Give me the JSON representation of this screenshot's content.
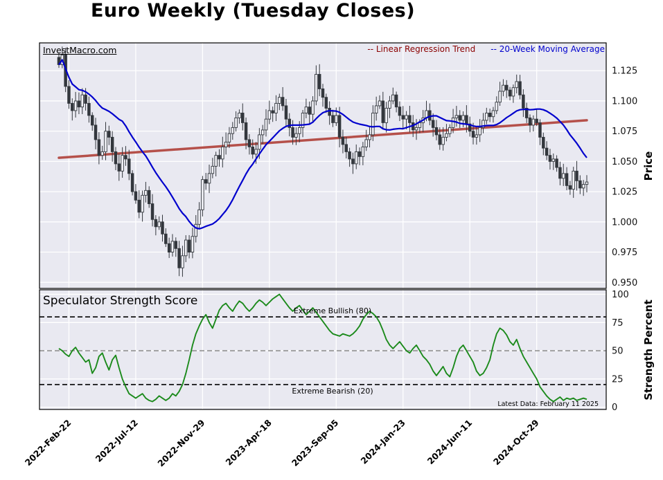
{
  "title": "Euro Weekly (Tuesday Closes)",
  "watermark": "InvestMacro.com",
  "legend": {
    "regression_label": "-- Linear Regression Trend",
    "ma_label": "-- 20-Week Moving Average"
  },
  "price_axis_label": "Price",
  "strength_axis_label": "Strength Percent",
  "subpanel_title": "Speculator Strength Score",
  "annotations": {
    "bullish": "Extreme Bullish (80)",
    "bearish": "Extreme Bearish (20)",
    "latest": "Latest Data: February 11 2025"
  },
  "colors": {
    "panel_bg": "#e9e9f1",
    "grid": "#ffffff",
    "regression_line": "#b5504a",
    "regression_text": "#8b0000",
    "ma_line": "#0000cd",
    "ma_text": "#0000cd",
    "strength_line": "#1b8a1b",
    "candle": "#33373d",
    "threshold_dark": "#000000",
    "threshold_gray": "#8a8a8a"
  },
  "chart_data": [
    {
      "type": "candlestick",
      "title": "Euro Weekly (Tuesday Closes)",
      "ylabel": "Price",
      "ylim": [
        0.945,
        1.148
      ],
      "ytick_values": [
        0.95,
        0.975,
        1.0,
        1.025,
        1.05,
        1.075,
        1.1,
        1.125
      ],
      "ytick_labels": [
        "0.950",
        "0.975",
        "1.000",
        "1.025",
        "1.050",
        "1.075",
        "1.100",
        "1.125"
      ],
      "x_tick_labels": [
        "2022-Feb-22",
        "2022-Jul-12",
        "2022-Nov-29",
        "2023-Apr-18",
        "2023-Sep-05",
        "2024-Jan-23",
        "2024-Jun-11",
        "2024-Oct-29"
      ],
      "x_tick_weeks": [
        3,
        23,
        43,
        63,
        83,
        103,
        123,
        143
      ],
      "ma_window": 20,
      "regression_trend": {
        "start": 1.053,
        "end": 1.084
      },
      "closes": [
        1.13,
        1.138,
        1.112,
        1.098,
        1.092,
        1.1,
        1.095,
        1.105,
        1.098,
        1.088,
        1.08,
        1.068,
        1.055,
        1.058,
        1.075,
        1.07,
        1.058,
        1.048,
        1.042,
        1.055,
        1.052,
        1.04,
        1.025,
        1.018,
        1.008,
        1.022,
        1.026,
        1.015,
        1.002,
        0.996,
        1.0,
        0.99,
        0.982,
        0.975,
        0.984,
        0.978,
        0.962,
        0.972,
        0.985,
        0.975,
        0.988,
        0.998,
        1.01,
        1.035,
        1.032,
        1.04,
        1.046,
        1.055,
        1.052,
        1.062,
        1.066,
        1.073,
        1.078,
        1.086,
        1.09,
        1.082,
        1.068,
        1.062,
        1.056,
        1.06,
        1.072,
        1.076,
        1.085,
        1.092,
        1.09,
        1.098,
        1.103,
        1.096,
        1.085,
        1.078,
        1.07,
        1.073,
        1.078,
        1.09,
        1.095,
        1.089,
        1.1,
        1.122,
        1.11,
        1.103,
        1.094,
        1.088,
        1.082,
        1.088,
        1.07,
        1.064,
        1.058,
        1.052,
        1.048,
        1.058,
        1.054,
        1.062,
        1.068,
        1.072,
        1.09,
        1.096,
        1.1,
        1.082,
        1.094,
        1.1,
        1.105,
        1.095,
        1.088,
        1.085,
        1.088,
        1.082,
        1.076,
        1.078,
        1.082,
        1.086,
        1.092,
        1.084,
        1.078,
        1.072,
        1.064,
        1.07,
        1.073,
        1.078,
        1.086,
        1.088,
        1.084,
        1.088,
        1.081,
        1.075,
        1.07,
        1.072,
        1.078,
        1.084,
        1.09,
        1.087,
        1.092,
        1.099,
        1.108,
        1.113,
        1.109,
        1.104,
        1.111,
        1.116,
        1.105,
        1.094,
        1.086,
        1.08,
        1.085,
        1.082,
        1.07,
        1.061,
        1.055,
        1.05,
        1.052,
        1.045,
        1.036,
        1.04,
        1.03,
        1.027,
        1.042,
        1.034,
        1.028,
        1.031,
        1.033
      ]
    },
    {
      "type": "line",
      "title": "Speculator Strength Score",
      "ylabel": "Strength Percent",
      "ylim": [
        -2,
        104
      ],
      "ytick_values": [
        0,
        25,
        50,
        75,
        100
      ],
      "ytick_labels": [
        "0",
        "25",
        "50",
        "75",
        "100"
      ],
      "thresholds": {
        "bullish": 80,
        "midline": 50,
        "bearish": 20
      },
      "values": [
        52,
        50,
        47,
        45,
        50,
        53,
        48,
        44,
        40,
        42,
        30,
        35,
        45,
        48,
        40,
        33,
        42,
        46,
        35,
        25,
        18,
        12,
        10,
        8,
        10,
        12,
        8,
        6,
        5,
        7,
        10,
        8,
        6,
        8,
        12,
        10,
        14,
        20,
        30,
        42,
        55,
        65,
        72,
        78,
        82,
        75,
        70,
        78,
        86,
        90,
        92,
        88,
        85,
        90,
        94,
        92,
        88,
        85,
        88,
        92,
        95,
        93,
        90,
        93,
        96,
        98,
        100,
        96,
        92,
        88,
        85,
        88,
        90,
        86,
        82,
        85,
        88,
        84,
        80,
        76,
        72,
        68,
        65,
        64,
        63,
        65,
        64,
        63,
        65,
        68,
        72,
        78,
        82,
        85,
        83,
        80,
        75,
        68,
        60,
        55,
        52,
        55,
        58,
        54,
        50,
        48,
        52,
        55,
        50,
        45,
        42,
        38,
        32,
        28,
        32,
        36,
        30,
        27,
        35,
        45,
        52,
        55,
        50,
        45,
        40,
        32,
        28,
        30,
        35,
        42,
        55,
        65,
        70,
        68,
        64,
        58,
        55,
        60,
        52,
        45,
        40,
        35,
        30,
        25,
        18,
        14,
        10,
        7,
        5,
        7,
        9,
        6,
        8,
        7,
        8,
        6,
        7,
        8,
        7
      ]
    }
  ]
}
